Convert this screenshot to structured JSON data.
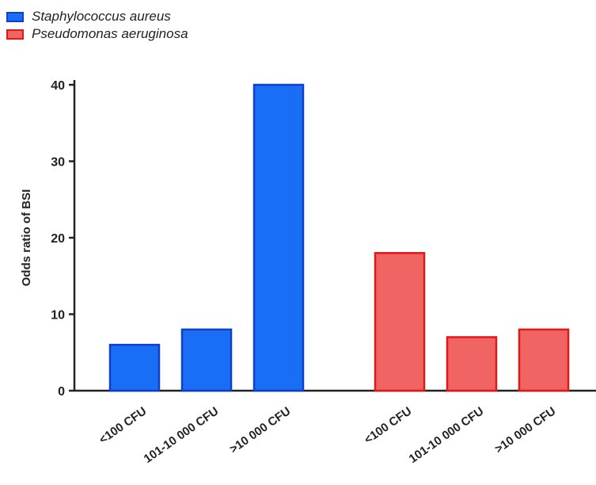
{
  "chart_data": {
    "type": "bar",
    "title": "",
    "xlabel": "",
    "ylabel": "Odds ratio of BSI",
    "ylim": [
      0,
      40
    ],
    "yticks": [
      0,
      10,
      20,
      30,
      40
    ],
    "grid": false,
    "legend_position": "top-left",
    "series": [
      {
        "name": "Staphylococcus aureus",
        "color": "#1a6ef5",
        "edge_color": "#1040c8",
        "categories": [
          "<100 CFU",
          "101-10 000 CFU",
          ">10 000 CFU"
        ],
        "values": [
          6,
          8,
          40
        ]
      },
      {
        "name": "Pseudomonas aeruginosa",
        "color": "#f06464",
        "edge_color": "#e01818",
        "categories": [
          "<100 CFU",
          "101-10 000 CFU",
          ">10 000 CFU"
        ],
        "values": [
          18,
          7,
          8
        ]
      }
    ]
  }
}
